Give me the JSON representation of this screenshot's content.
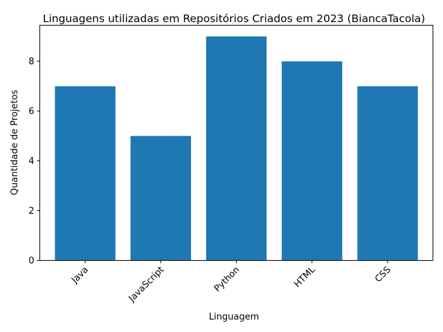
{
  "chart_data": {
    "type": "bar",
    "title": "Linguagens utilizadas em Repositórios Criados em 2023 (BiancaTacola)",
    "xlabel": "Linguagem",
    "ylabel": "Quantidade de Projetos",
    "categories": [
      "Java",
      "JavaScript",
      "Python",
      "HTML",
      "CSS"
    ],
    "values": [
      7,
      5,
      9,
      8,
      7
    ],
    "ylim": [
      0,
      9.45
    ],
    "yticks": [
      "0",
      "2",
      "4",
      "6",
      "8"
    ],
    "bar_color": "#1f77b4",
    "grid": false,
    "legend": "none"
  }
}
